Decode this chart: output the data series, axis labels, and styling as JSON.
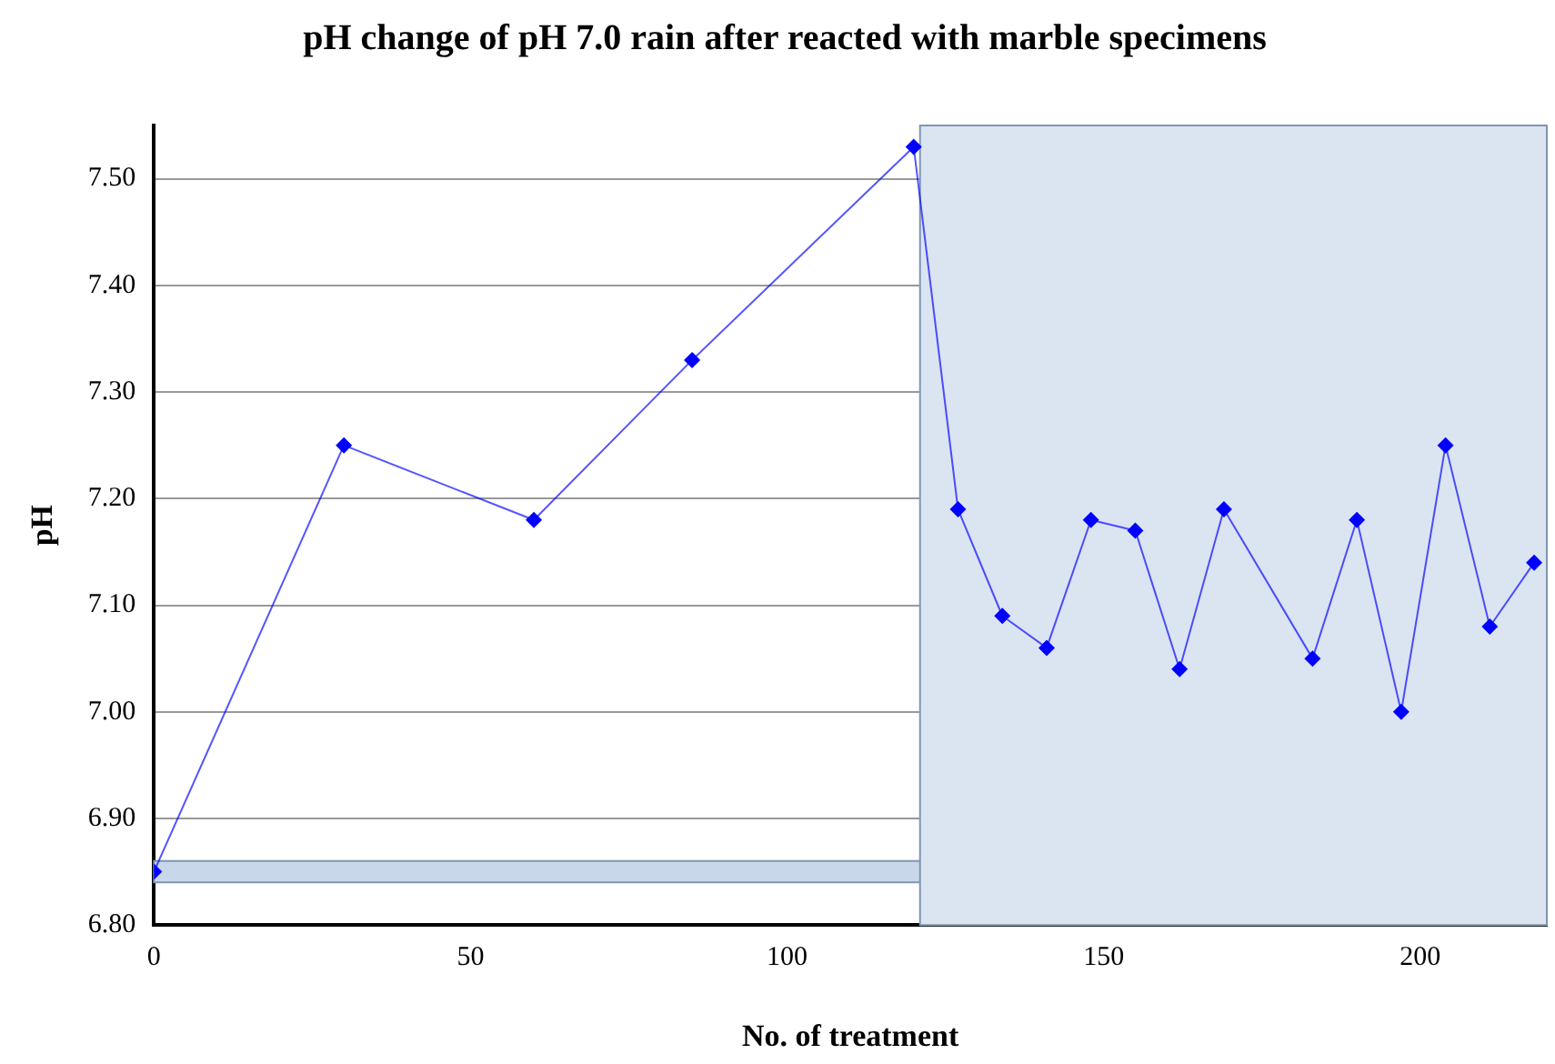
{
  "chart_data": {
    "type": "line",
    "title": "pH change of pH 7.0 rain after reacted with marble specimens",
    "xlabel": "No. of treatment",
    "ylabel": "pH",
    "x": [
      0,
      30,
      60,
      85,
      120,
      127,
      134,
      141,
      148,
      155,
      162,
      169,
      183,
      190,
      197,
      204,
      211,
      218
    ],
    "series": [
      {
        "color": "#0000ff",
        "values": [
          6.85,
          7.25,
          7.18,
          7.33,
          7.53,
          7.19,
          7.09,
          7.06,
          7.18,
          7.17,
          7.04,
          7.19,
          7.05,
          7.18,
          7.0,
          7.25,
          7.08,
          7.14
        ]
      }
    ],
    "xlim": [
      0,
      220
    ],
    "xticks": [
      0,
      50,
      100,
      150,
      200
    ],
    "ylim": [
      6.8,
      7.55
    ],
    "yticks": [
      {
        "value": 6.8,
        "label": "6.80"
      },
      {
        "value": 6.9,
        "label": "6.90"
      },
      {
        "value": 7.0,
        "label": "7.00"
      },
      {
        "value": 7.1,
        "label": "7.10"
      },
      {
        "value": 7.2,
        "label": "7.20"
      },
      {
        "value": 7.3,
        "label": "7.30"
      },
      {
        "value": 7.4,
        "label": "7.40"
      },
      {
        "value": 7.5,
        "label": "7.50"
      }
    ],
    "bands": [
      {
        "axis": "y",
        "from": 6.84,
        "to": 6.86,
        "color": "#c9d7ea"
      },
      {
        "axis": "x",
        "from": 121,
        "to": 220,
        "color": "#dbe4f1"
      }
    ],
    "grid": "y",
    "legend": false,
    "marker": "diamond",
    "line_style": "solid"
  }
}
